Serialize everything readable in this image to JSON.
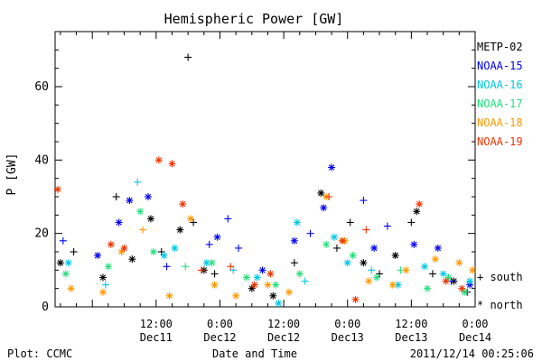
{
  "chart_data": {
    "type": "scatter",
    "title": "Hemispheric Power [GW]",
    "ylabel": "P [GW]",
    "xlabel": "Date and Time",
    "ylim": [
      0,
      75
    ],
    "xlim": [
      "2011-12-10T17:00",
      "2011-12-14T00:00"
    ],
    "y_ticks": [
      0,
      20,
      40,
      60
    ],
    "x_ticks": [
      {
        "t": "2011-12-11T12:00",
        "line1": "12:00",
        "line2": "Dec11"
      },
      {
        "t": "2011-12-12T00:00",
        "line1": "0:00",
        "line2": "Dec12"
      },
      {
        "t": "2011-12-12T12:00",
        "line1": "12:00",
        "line2": "Dec12"
      },
      {
        "t": "2011-12-13T00:00",
        "line1": "0:00",
        "line2": "Dec13"
      },
      {
        "t": "2011-12-13T12:00",
        "line1": "12:00",
        "line2": "Dec13"
      },
      {
        "t": "2011-12-14T00:00",
        "line1": "0:00",
        "line2": "Dec14"
      }
    ],
    "marker_legend": {
      "south": "+ south",
      "north": "* north"
    },
    "series": [
      {
        "name": "METP-02",
        "color": "#000000",
        "points": [
          [
            "2011-12-10T18:00",
            12,
            "*"
          ],
          [
            "2011-12-10T20:30",
            15,
            "+"
          ],
          [
            "2011-12-11T02:00",
            8,
            "*"
          ],
          [
            "2011-12-11T04:30",
            30,
            "+"
          ],
          [
            "2011-12-11T07:30",
            13,
            "*"
          ],
          [
            "2011-12-11T11:00",
            24,
            "*"
          ],
          [
            "2011-12-11T13:00",
            15,
            "+"
          ],
          [
            "2011-12-11T16:30",
            21,
            "*"
          ],
          [
            "2011-12-11T18:00",
            68,
            "+"
          ],
          [
            "2011-12-11T19:00",
            23,
            "+"
          ],
          [
            "2011-12-11T21:00",
            10,
            "*"
          ],
          [
            "2011-12-11T23:00",
            9,
            "+"
          ],
          [
            "2011-12-12T06:00",
            5,
            "*"
          ],
          [
            "2011-12-12T10:00",
            3,
            "*"
          ],
          [
            "2011-12-12T14:00",
            12,
            "+"
          ],
          [
            "2011-12-12T19:00",
            31,
            "*"
          ],
          [
            "2011-12-12T22:00",
            16,
            "+"
          ],
          [
            "2011-12-13T00:30",
            23,
            "+"
          ],
          [
            "2011-12-13T03:00",
            12,
            "*"
          ],
          [
            "2011-12-13T06:00",
            9,
            "+"
          ],
          [
            "2011-12-13T09:00",
            14,
            "*"
          ],
          [
            "2011-12-13T12:00",
            23,
            "+"
          ],
          [
            "2011-12-13T13:00",
            26,
            "*"
          ],
          [
            "2011-12-13T16:00",
            9,
            "+"
          ],
          [
            "2011-12-13T20:00",
            7,
            "*"
          ],
          [
            "2011-12-13T22:30",
            4,
            "+"
          ]
        ]
      },
      {
        "name": "NOAA-15",
        "color": "#0000ee",
        "points": [
          [
            "2011-12-10T18:30",
            18,
            "+"
          ],
          [
            "2011-12-11T01:00",
            14,
            "*"
          ],
          [
            "2011-12-11T05:00",
            23,
            "*"
          ],
          [
            "2011-12-11T07:00",
            29,
            "*"
          ],
          [
            "2011-12-11T10:30",
            30,
            "*"
          ],
          [
            "2011-12-11T14:00",
            11,
            "+"
          ],
          [
            "2011-12-11T22:00",
            17,
            "+"
          ],
          [
            "2011-12-11T23:30",
            19,
            "*"
          ],
          [
            "2011-12-12T01:30",
            24,
            "+"
          ],
          [
            "2011-12-12T03:30",
            16,
            "+"
          ],
          [
            "2011-12-12T08:00",
            10,
            "*"
          ],
          [
            "2011-12-12T14:00",
            18,
            "*"
          ],
          [
            "2011-12-12T17:00",
            20,
            "+"
          ],
          [
            "2011-12-12T19:30",
            27,
            "*"
          ],
          [
            "2011-12-12T21:00",
            38,
            "*"
          ],
          [
            "2011-12-13T03:00",
            29,
            "+"
          ],
          [
            "2011-12-13T05:00",
            16,
            "*"
          ],
          [
            "2011-12-13T07:30",
            22,
            "+"
          ],
          [
            "2011-12-13T12:30",
            17,
            "*"
          ],
          [
            "2011-12-13T17:00",
            16,
            "*"
          ],
          [
            "2011-12-13T19:30",
            7,
            "+"
          ],
          [
            "2011-12-13T23:00",
            6,
            "*"
          ]
        ]
      },
      {
        "name": "NOAA-16",
        "color": "#00c8e6",
        "points": [
          [
            "2011-12-10T19:30",
            12,
            "*"
          ],
          [
            "2011-12-11T02:30",
            6,
            "+"
          ],
          [
            "2011-12-11T08:30",
            34,
            "+"
          ],
          [
            "2011-12-11T13:30",
            14,
            "*"
          ],
          [
            "2011-12-11T15:30",
            16,
            "*"
          ],
          [
            "2011-12-11T21:30",
            12,
            "*"
          ],
          [
            "2011-12-12T02:30",
            10,
            "+"
          ],
          [
            "2011-12-12T07:00",
            8,
            "*"
          ],
          [
            "2011-12-12T11:00",
            1,
            "*"
          ],
          [
            "2011-12-12T14:30",
            23,
            "*"
          ],
          [
            "2011-12-12T16:00",
            7,
            "+"
          ],
          [
            "2011-12-12T21:30",
            19,
            "*"
          ],
          [
            "2011-12-13T00:00",
            12,
            "*"
          ],
          [
            "2011-12-13T04:30",
            10,
            "+"
          ],
          [
            "2011-12-13T09:30",
            6,
            "*"
          ],
          [
            "2011-12-13T14:30",
            11,
            "*"
          ],
          [
            "2011-12-13T18:00",
            9,
            "*"
          ],
          [
            "2011-12-13T23:00",
            7,
            "*"
          ]
        ]
      },
      {
        "name": "NOAA-17",
        "color": "#22e07a",
        "points": [
          [
            "2011-12-10T19:00",
            9,
            "*"
          ],
          [
            "2011-12-11T03:00",
            11,
            "*"
          ],
          [
            "2011-12-11T09:00",
            26,
            "*"
          ],
          [
            "2011-12-11T11:30",
            15,
            "*"
          ],
          [
            "2011-12-11T17:30",
            11,
            "+"
          ],
          [
            "2011-12-11T22:30",
            12,
            "*"
          ],
          [
            "2011-12-12T05:00",
            8,
            "*"
          ],
          [
            "2011-12-12T10:30",
            6,
            "*"
          ],
          [
            "2011-12-12T15:00",
            9,
            "*"
          ],
          [
            "2011-12-12T20:00",
            17,
            "*"
          ],
          [
            "2011-12-13T01:00",
            14,
            "*"
          ],
          [
            "2011-12-13T05:30",
            8,
            "*"
          ],
          [
            "2011-12-13T10:00",
            10,
            "+"
          ],
          [
            "2011-12-13T15:00",
            5,
            "*"
          ],
          [
            "2011-12-13T19:00",
            8,
            "*"
          ],
          [
            "2011-12-13T22:00",
            4,
            "*"
          ]
        ]
      },
      {
        "name": "NOAA-18",
        "color": "#ff9900",
        "points": [
          [
            "2011-12-10T20:00",
            5,
            "*"
          ],
          [
            "2011-12-11T02:00",
            4,
            "*"
          ],
          [
            "2011-12-11T05:30",
            15,
            "*"
          ],
          [
            "2011-12-11T09:30",
            21,
            "+"
          ],
          [
            "2011-12-11T14:30",
            3,
            "*"
          ],
          [
            "2011-12-11T18:30",
            24,
            "*"
          ],
          [
            "2011-12-11T23:00",
            6,
            "*"
          ],
          [
            "2011-12-12T03:00",
            3,
            "*"
          ],
          [
            "2011-12-12T09:00",
            6,
            "*"
          ],
          [
            "2011-12-12T13:00",
            4,
            "*"
          ],
          [
            "2011-12-12T20:00",
            30,
            "*"
          ],
          [
            "2011-12-12T23:30",
            18,
            "*"
          ],
          [
            "2011-12-13T04:00",
            7,
            "*"
          ],
          [
            "2011-12-13T08:30",
            6,
            "*"
          ],
          [
            "2011-12-13T11:00",
            10,
            "*"
          ],
          [
            "2011-12-13T16:30",
            13,
            "*"
          ],
          [
            "2011-12-13T21:00",
            12,
            "*"
          ],
          [
            "2011-12-13T23:30",
            10,
            "*"
          ]
        ]
      },
      {
        "name": "NOAA-19",
        "color": "#ee3300",
        "points": [
          [
            "2011-12-10T17:30",
            32,
            "*"
          ],
          [
            "2011-12-11T03:30",
            17,
            "*"
          ],
          [
            "2011-12-11T06:00",
            16,
            "*"
          ],
          [
            "2011-12-11T12:30",
            40,
            "*"
          ],
          [
            "2011-12-11T15:00",
            39,
            "*"
          ],
          [
            "2011-12-11T17:00",
            28,
            "*"
          ],
          [
            "2011-12-11T20:30",
            10,
            "+"
          ],
          [
            "2011-12-12T02:00",
            11,
            "+"
          ],
          [
            "2011-12-12T06:30",
            6,
            "*"
          ],
          [
            "2011-12-12T09:30",
            9,
            "*"
          ],
          [
            "2011-12-12T20:30",
            30,
            "+"
          ],
          [
            "2011-12-12T23:00",
            18,
            "*"
          ],
          [
            "2011-12-13T01:30",
            2,
            "*"
          ],
          [
            "2011-12-13T03:30",
            21,
            "+"
          ],
          [
            "2011-12-13T13:30",
            28,
            "*"
          ],
          [
            "2011-12-13T18:30",
            7,
            "*"
          ],
          [
            "2011-12-13T21:30",
            5,
            "*"
          ]
        ]
      }
    ]
  },
  "footer": {
    "left": "Plot: CCMC",
    "center": "Date and Time",
    "right": "2011/12/14 00:25:06"
  }
}
